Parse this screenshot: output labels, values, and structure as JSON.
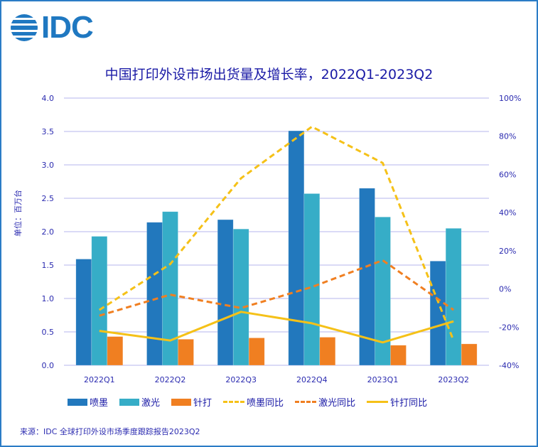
{
  "logo": {
    "text": "IDC",
    "icon": "idc-globe-icon",
    "color": "#1f78c1"
  },
  "title": "中国打印外设市场出货量及增长率，2022Q1-2023Q2",
  "y_axis_label": "单位：百万台",
  "source": "来源：IDC 全球打印外设市场季度跟踪报告2023Q2",
  "chart_data": {
    "type": "bar",
    "title": "中国打印外设市场出货量及增长率，2022Q1-2023Q2",
    "xlabel": "",
    "ylabel": "单位：百万台",
    "categories": [
      "2022Q1",
      "2022Q2",
      "2022Q3",
      "2022Q4",
      "2023Q1",
      "2023Q2"
    ],
    "ylim": [
      0,
      4.0
    ],
    "yticks": [
      "0.0",
      "0.5",
      "1.0",
      "1.5",
      "2.0",
      "2.5",
      "3.0",
      "3.5",
      "4.0"
    ],
    "y2lim": [
      -40,
      100
    ],
    "y2ticks": [
      "-40%",
      "-20%",
      "0%",
      "20%",
      "40%",
      "60%",
      "80%",
      "100%"
    ],
    "grid": true,
    "legend_position": "bottom",
    "bar_series": [
      {
        "name": "喷墨",
        "color": "#2278bd",
        "values": [
          1.59,
          2.14,
          2.18,
          3.51,
          2.65,
          1.56
        ]
      },
      {
        "name": "激光",
        "color": "#36adc7",
        "values": [
          1.93,
          2.3,
          2.04,
          2.57,
          2.22,
          2.05
        ]
      },
      {
        "name": "针打",
        "color": "#f07f21",
        "values": [
          0.43,
          0.39,
          0.41,
          0.42,
          0.3,
          0.32
        ]
      }
    ],
    "line_series": [
      {
        "name": "喷墨同比",
        "color": "#f5c118",
        "style": "dashed",
        "axis": "right",
        "unit": "%",
        "values": [
          -11,
          13,
          58,
          85,
          66,
          -27
        ]
      },
      {
        "name": "激光同比",
        "color": "#f07f21",
        "style": "dashed",
        "axis": "right",
        "unit": "%",
        "values": [
          -14,
          -3,
          -10,
          1,
          15,
          -11
        ]
      },
      {
        "name": "针打同比",
        "color": "#f5c118",
        "style": "solid",
        "axis": "right",
        "unit": "%",
        "values": [
          -22,
          -27,
          -12,
          -18,
          -28,
          -17
        ]
      }
    ]
  }
}
